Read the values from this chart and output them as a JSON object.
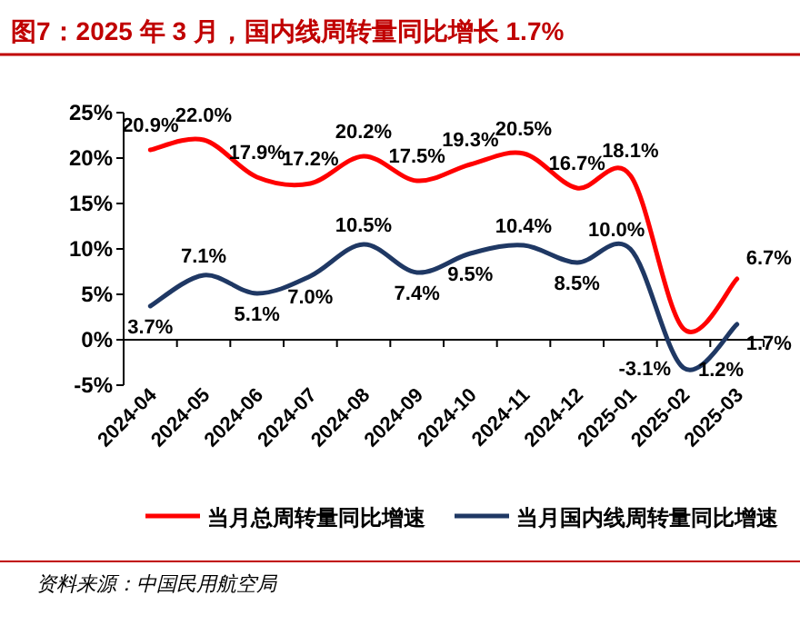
{
  "chart_data": {
    "type": "line",
    "title": "图7：2025 年 3 月，国内线周转量同比增长 1.7%",
    "categories": [
      "2024-04",
      "2024-05",
      "2024-06",
      "2024-07",
      "2024-08",
      "2024-09",
      "2024-10",
      "2024-11",
      "2024-12",
      "2025-01",
      "2025-02",
      "2025-03"
    ],
    "series": [
      {
        "name": "当月总周转量同比增速",
        "color": "#ff0000",
        "values": [
          20.9,
          22.0,
          17.9,
          17.2,
          20.2,
          17.5,
          19.3,
          20.5,
          16.7,
          18.1,
          1.2,
          6.7
        ],
        "value_labels": [
          "20.9%",
          "22.0%",
          "17.9%",
          "17.2%",
          "20.2%",
          "17.5%",
          "19.3%",
          "20.5%",
          "16.7%",
          "18.1%",
          "1.2%",
          "6.7%"
        ]
      },
      {
        "name": "当月国内线周转量同比增速",
        "color": "#1f3864",
        "values": [
          3.7,
          7.1,
          5.1,
          7.0,
          10.5,
          7.4,
          9.5,
          10.4,
          8.5,
          10.0,
          -3.1,
          1.7
        ],
        "value_labels": [
          "3.7%",
          "7.1%",
          "5.1%",
          "7.0%",
          "10.5%",
          "7.4%",
          "9.5%",
          "10.4%",
          "8.5%",
          "10.0%",
          "-3.1%",
          "1.7%"
        ]
      }
    ],
    "ylim": [
      -5,
      25
    ],
    "yticks": [
      {
        "value": -5,
        "label": "-5%"
      },
      {
        "value": 0,
        "label": "0%"
      },
      {
        "value": 5,
        "label": "5%"
      },
      {
        "value": 10,
        "label": "10%"
      },
      {
        "value": 15,
        "label": "15%"
      },
      {
        "value": 20,
        "label": "20%"
      },
      {
        "value": 25,
        "label": "25%"
      }
    ],
    "legend": "bottom",
    "annotations": [
      "资料来源：中国民用航空局"
    ]
  }
}
